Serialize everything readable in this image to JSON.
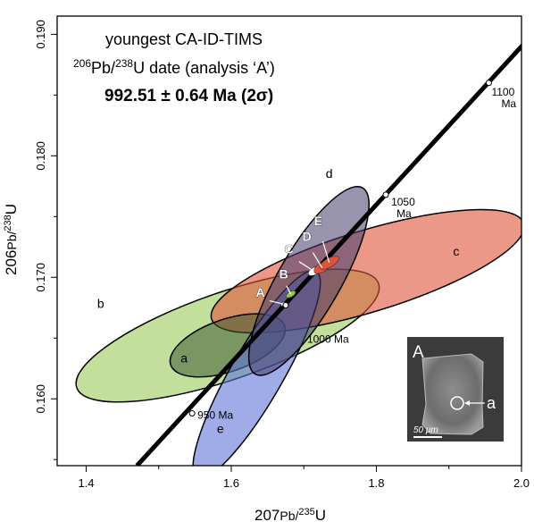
{
  "chart_data": {
    "type": "scatter",
    "subtype": "concordia",
    "xlabel": {
      "sup": "207",
      "main": "Pb/",
      "sup2": "235",
      "tail": "U"
    },
    "ylabel": {
      "sup": "206",
      "main": "Pb/",
      "sup2": "238",
      "tail": "U"
    },
    "xlim": [
      1.36,
      2.0
    ],
    "ylim": [
      0.1545,
      0.1915
    ],
    "xticks": [
      1.4,
      1.6,
      1.8,
      2.0
    ],
    "xtick_labels": [
      "1.4",
      "1.6",
      "1.8",
      "2.0"
    ],
    "yticks": [
      0.16,
      0.17,
      0.18,
      0.19
    ],
    "ytick_labels": [
      "0.160",
      "0.170",
      "0.180",
      "0.190"
    ],
    "minor_xticks": [
      1.5,
      1.7,
      1.9
    ],
    "minor_yticks": [
      0.155,
      0.165,
      0.175,
      0.185
    ],
    "concordia": {
      "line": [
        [
          1.47,
          0.1545
        ],
        [
          2.0,
          0.189
        ]
      ],
      "age_markers": [
        {
          "label": "950 Ma",
          "x": 1.546,
          "y": 0.1588
        },
        {
          "label": "1000 Ma",
          "x": 1.675,
          "y": 0.1677
        },
        {
          "label": "1050",
          "label2": "Ma",
          "x": 1.813,
          "y": 0.1768
        },
        {
          "label": "1100",
          "label2": "Ma",
          "x": 1.955,
          "y": 0.186
        }
      ]
    },
    "ellipses": [
      {
        "label": "b",
        "cx": 1.595,
        "cy": 0.1652,
        "rx": 0.22,
        "ry": 0.06,
        "angle": -19,
        "fill": "#8fc649",
        "opacity": 0.55
      },
      {
        "label": "c",
        "cx": 1.788,
        "cy": 0.1705,
        "rx": 0.225,
        "ry": 0.056,
        "angle": -17,
        "fill": "#e0533a",
        "opacity": 0.6
      },
      {
        "label": "a",
        "cx": 1.595,
        "cy": 0.1644,
        "rx": 0.083,
        "ry": 0.036,
        "angle": -19,
        "fill": "#3e5a34",
        "opacity": 0.55
      },
      {
        "label": "e",
        "cx": 1.635,
        "cy": 0.162,
        "rx": 0.164,
        "ry": 0.036,
        "angle": -60,
        "fill": "#5f75d8",
        "opacity": 0.6
      },
      {
        "label": "d",
        "cx": 1.707,
        "cy": 0.1697,
        "rx": 0.148,
        "ry": 0.043,
        "angle": -60,
        "fill": "#443d6b",
        "opacity": 0.55
      }
    ],
    "small_analyses": [
      {
        "label": "A",
        "x": 1.672,
        "y": 0.1678
      },
      {
        "label": "B",
        "x": 1.682,
        "y": 0.1686
      },
      {
        "label": "C",
        "x": 1.714,
        "y": 0.1705
      },
      {
        "label": "D",
        "x": 1.725,
        "y": 0.1708
      },
      {
        "label": "E",
        "x": 1.735,
        "y": 0.1712
      }
    ],
    "point_labels": [
      {
        "label": "a",
        "x": 1.535,
        "y": 0.163
      },
      {
        "label": "b",
        "x": 1.42,
        "y": 0.1675
      },
      {
        "label": "c",
        "x": 1.91,
        "y": 0.1718
      },
      {
        "label": "d",
        "x": 1.735,
        "y": 0.1782
      },
      {
        "label": "e",
        "x": 1.585,
        "y": 0.1572
      }
    ],
    "annotation": {
      "line1": "youngest CA-ID-TIMS",
      "line2_sup": "206",
      "line2_a": "Pb/",
      "line2_sup2": "238",
      "line2_b": "U date (analysis ‘A’)",
      "line3": "992.51 ± 0.64 Ma (2σ)"
    },
    "inset": {
      "label": "A",
      "spot_label": "a",
      "scale_label": "50 μm"
    }
  }
}
